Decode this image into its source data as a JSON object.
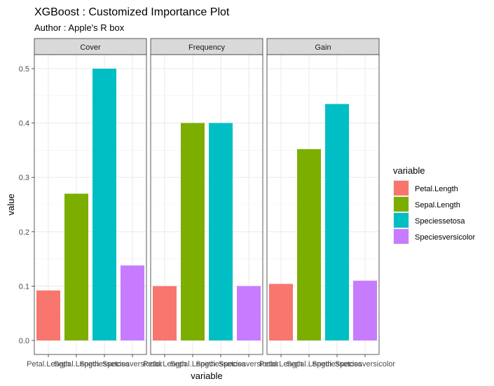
{
  "chart_data": {
    "type": "bar",
    "title": "XGBoost : Customized Importance Plot",
    "subtitle": "Author : Apple's R box",
    "xlabel": "variable",
    "ylabel": "value",
    "ylim": [
      0,
      0.5
    ],
    "yticks": [
      "0.0",
      "0.1",
      "0.2",
      "0.3",
      "0.4",
      "0.5"
    ],
    "grid": true,
    "legend": {
      "title": "variable",
      "position": "right",
      "entries": [
        {
          "label": "Petal.Length",
          "color": "#F8766D"
        },
        {
          "label": "Sepal.Length",
          "color": "#7CAE00"
        },
        {
          "label": "Speciessetosa",
          "color": "#00BFC4"
        },
        {
          "label": "Speciesversicolor",
          "color": "#C77CFF"
        }
      ]
    },
    "categories": [
      "Petal.Length",
      "Sepal.Length",
      "Speciessetosa",
      "Speciesversicolor"
    ],
    "facets": [
      {
        "name": "Cover",
        "values": [
          0.092,
          0.27,
          0.5,
          0.138
        ]
      },
      {
        "name": "Frequency",
        "values": [
          0.1,
          0.4,
          0.4,
          0.1
        ]
      },
      {
        "name": "Gain",
        "values": [
          0.104,
          0.352,
          0.435,
          0.11
        ]
      }
    ]
  }
}
